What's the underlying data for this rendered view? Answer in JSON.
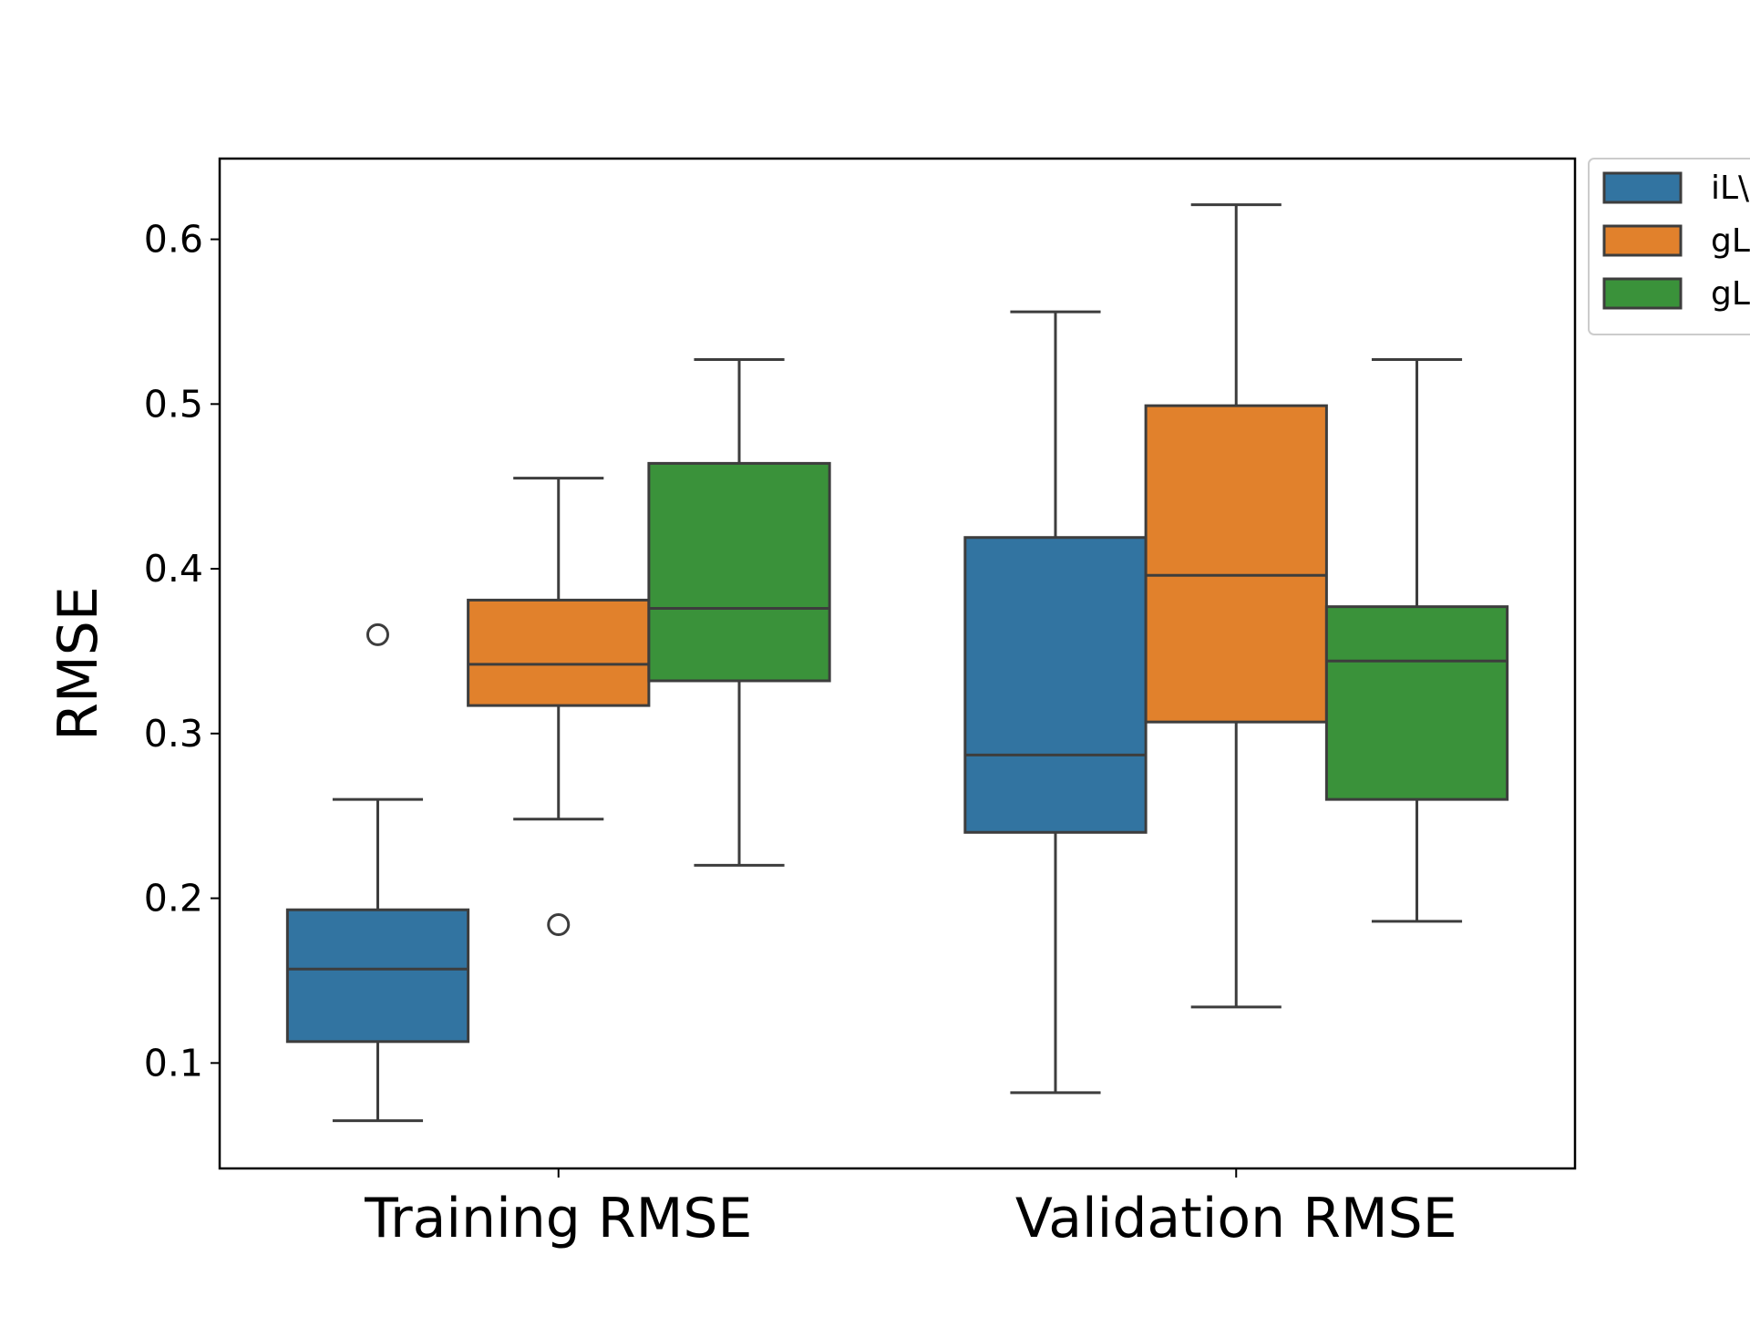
{
  "chart_data": {
    "type": "box",
    "ylabel": "RMSE",
    "xlabel": "",
    "ylim": [
      0.036,
      0.649
    ],
    "yticks": [
      0.1,
      0.2,
      0.3,
      0.4,
      0.5,
      0.6
    ],
    "ytick_labels": [
      "0.1",
      "0.2",
      "0.3",
      "0.4",
      "0.5",
      "0.6"
    ],
    "categories": [
      "Training RMSE",
      "Validation RMSE"
    ],
    "legend": {
      "placement": "outside-top-right",
      "entries_truncated": [
        "iL\\",
        "gL",
        "gL"
      ]
    },
    "series": [
      {
        "name": "iL\\",
        "color": "#3274a1",
        "boxes": [
          {
            "whisker_low": 0.065,
            "q1": 0.113,
            "median": 0.157,
            "q3": 0.193,
            "whisker_high": 0.26,
            "outliers": [
              0.36
            ]
          },
          {
            "whisker_low": 0.082,
            "q1": 0.24,
            "median": 0.287,
            "q3": 0.419,
            "whisker_high": 0.556,
            "outliers": []
          }
        ]
      },
      {
        "name": "gL",
        "color": "#e1812c",
        "boxes": [
          {
            "whisker_low": 0.248,
            "q1": 0.317,
            "median": 0.342,
            "q3": 0.381,
            "whisker_high": 0.455,
            "outliers": [
              0.184
            ]
          },
          {
            "whisker_low": 0.134,
            "q1": 0.307,
            "median": 0.396,
            "q3": 0.499,
            "whisker_high": 0.621,
            "outliers": []
          }
        ]
      },
      {
        "name": "gL",
        "color": "#3a923a",
        "boxes": [
          {
            "whisker_low": 0.22,
            "q1": 0.332,
            "median": 0.376,
            "q3": 0.464,
            "whisker_high": 0.527,
            "outliers": []
          },
          {
            "whisker_low": 0.186,
            "q1": 0.26,
            "median": 0.344,
            "q3": 0.377,
            "whisker_high": 0.527,
            "outliers": []
          }
        ]
      }
    ]
  }
}
